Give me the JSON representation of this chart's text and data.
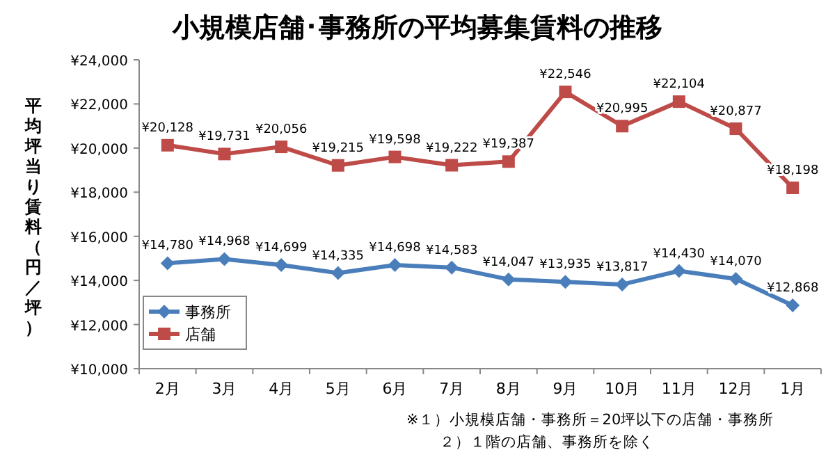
{
  "chart_data": {
    "type": "line",
    "title": "小規模店舗･事務所の平均募集賃料の推移",
    "ylabel": "平均坪当り賃料（円／坪）",
    "categories": [
      "2月",
      "3月",
      "4月",
      "5月",
      "6月",
      "7月",
      "8月",
      "9月",
      "10月",
      "11月",
      "12月",
      "1月"
    ],
    "series": [
      {
        "name": "事務所",
        "color": "#4a7ebb",
        "marker": "diamond",
        "values": [
          14780,
          14968,
          14699,
          14335,
          14698,
          14583,
          14047,
          13935,
          13817,
          14430,
          14070,
          12868
        ],
        "value_labels": [
          "¥14,780",
          "¥14,968",
          "¥14,699",
          "¥14,335",
          "¥14,698",
          "¥14,583",
          "¥14,047",
          "¥13,935",
          "¥13,817",
          "¥14,430",
          "¥14,070",
          "¥12,868"
        ]
      },
      {
        "name": "店舗",
        "color": "#be4b48",
        "marker": "square",
        "values": [
          20128,
          19731,
          20056,
          19215,
          19598,
          19222,
          19387,
          22546,
          20995,
          22104,
          20877,
          18198
        ],
        "value_labels": [
          "¥20,128",
          "¥19,731",
          "¥20,056",
          "¥19,215",
          "¥19,598",
          "¥19,222",
          "¥19,387",
          "¥22,546",
          "¥20,995",
          "¥22,104",
          "¥20,877",
          "¥18,198"
        ]
      }
    ],
    "ylim": [
      10000,
      24000
    ],
    "yticks": [
      {
        "value": 10000,
        "label": "¥10,000"
      },
      {
        "value": 12000,
        "label": "¥12,000"
      },
      {
        "value": 14000,
        "label": "¥14,000"
      },
      {
        "value": 16000,
        "label": "¥16,000"
      },
      {
        "value": 18000,
        "label": "¥18,000"
      },
      {
        "value": 20000,
        "label": "¥20,000"
      },
      {
        "value": 22000,
        "label": "¥22,000"
      },
      {
        "value": 24000,
        "label": "¥24,000"
      }
    ],
    "legend": "bottom left",
    "annotations": [
      "※１）小規模店舗・事務所＝20坪以下の店舗・事務所",
      "２）１階の店舗、事務所を除く"
    ]
  }
}
